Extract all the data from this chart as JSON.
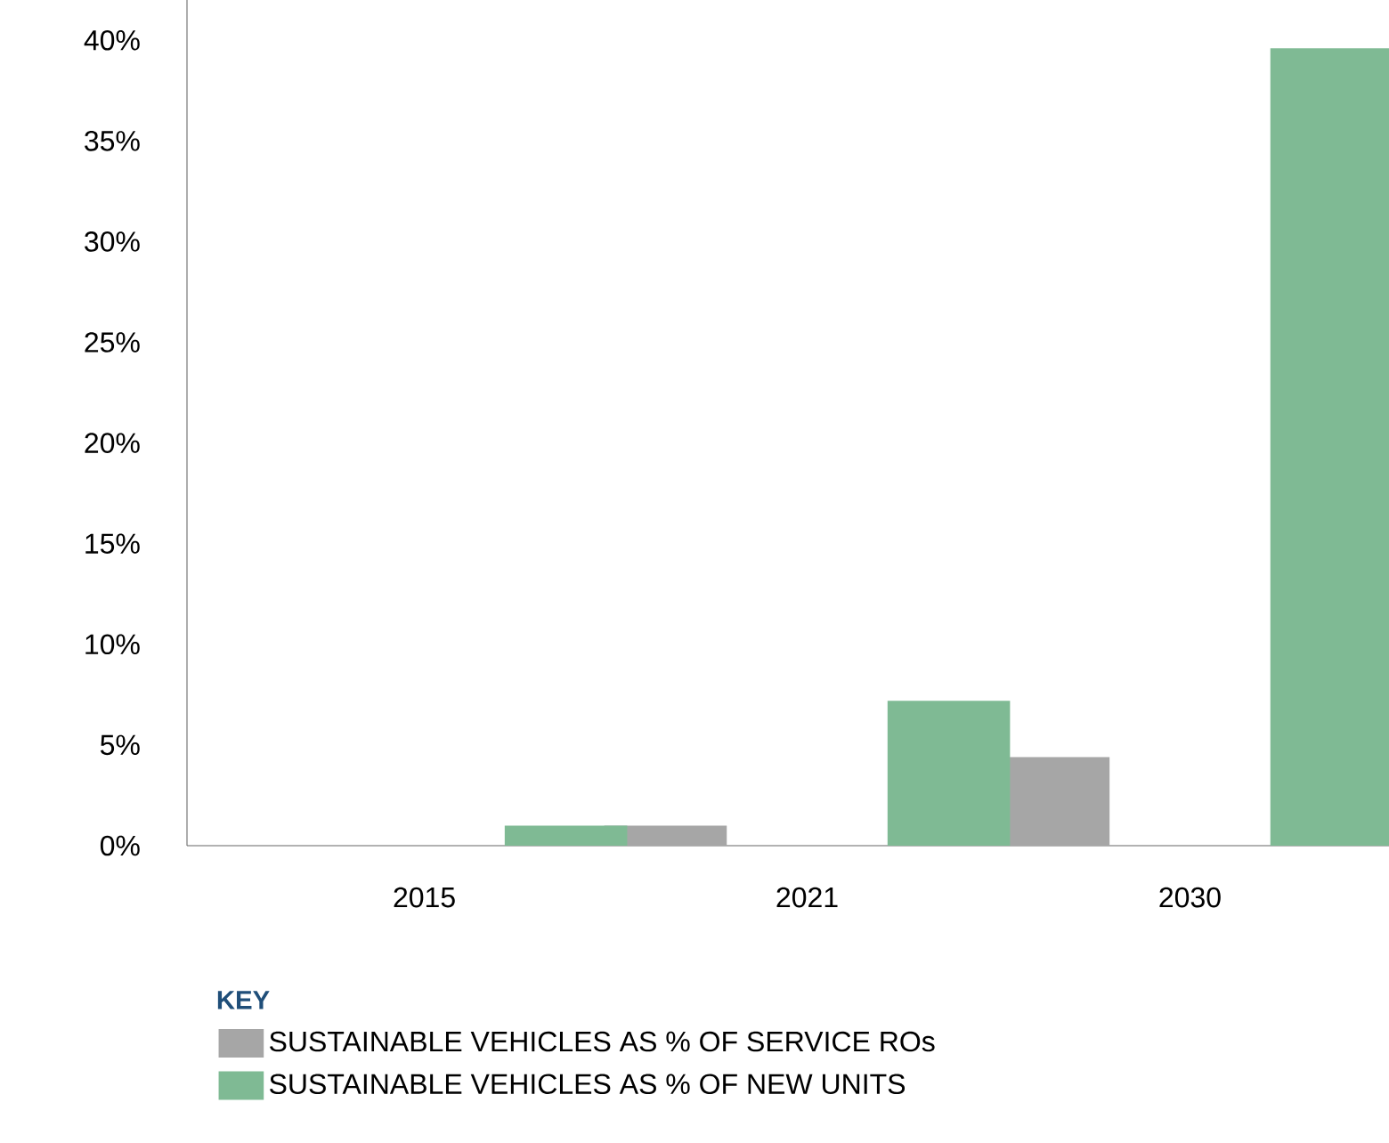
{
  "chart_data": {
    "type": "bar",
    "categories": [
      "2015",
      "2021",
      "2030"
    ],
    "series": [
      {
        "name": "SUSTAINABLE VEHICLES AS % OF SERVICE ROs",
        "color": "#a6a6a6",
        "values": [
          0,
          1,
          4.4
        ]
      },
      {
        "name": "SUSTAINABLE VEHICLES AS % OF NEW UNITS",
        "color": "#7fba94",
        "values": [
          1,
          7.2,
          39.6
        ]
      }
    ],
    "ylim": [
      0,
      42
    ],
    "yticks": [
      {
        "value": 0,
        "label": "0%"
      },
      {
        "value": 5,
        "label": "5%"
      },
      {
        "value": 10,
        "label": "10%"
      },
      {
        "value": 15,
        "label": "15%"
      },
      {
        "value": 20,
        "label": "20%"
      },
      {
        "value": 25,
        "label": "25%"
      },
      {
        "value": 30,
        "label": "30%"
      },
      {
        "value": 35,
        "label": "35%"
      },
      {
        "value": 40,
        "label": "40%"
      }
    ],
    "legend_title": "KEY",
    "legend": "bottom left",
    "grid": false
  }
}
